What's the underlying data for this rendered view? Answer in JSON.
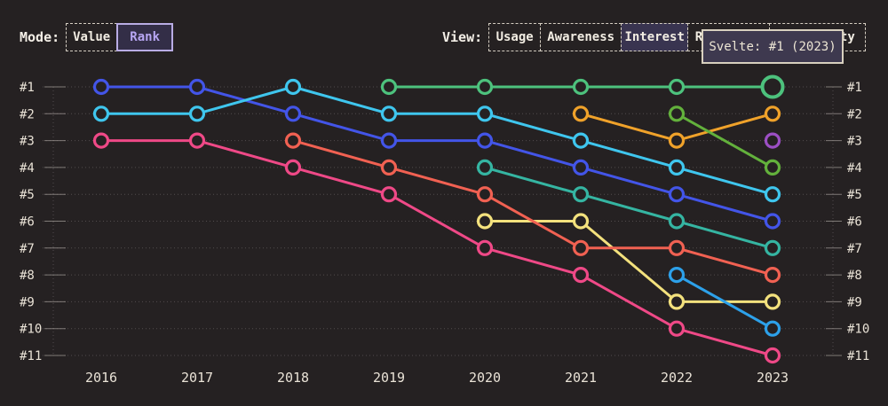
{
  "mode_control": {
    "label": "Mode:",
    "options": [
      {
        "label": "Value",
        "selected": false
      },
      {
        "label": "Rank",
        "selected": true
      }
    ]
  },
  "view_control": {
    "label": "View:",
    "options": [
      {
        "label": "Usage",
        "selected": false
      },
      {
        "label": "Awareness",
        "selected": false
      },
      {
        "label": "Interest",
        "selected": true
      },
      {
        "label": "Retention",
        "selected": false
      },
      {
        "label": "Positivity",
        "selected": false
      }
    ]
  },
  "tooltip": {
    "text": "Svelte: #1 (2023)"
  },
  "chart_data": {
    "type": "line",
    "subtype": "bump-rank-chart",
    "x_labels": [
      "2016",
      "2017",
      "2018",
      "2019",
      "2020",
      "2021",
      "2022",
      "2023"
    ],
    "rank_labels": [
      "#1",
      "#2",
      "#3",
      "#4",
      "#5",
      "#6",
      "#7",
      "#8",
      "#9",
      "#10",
      "#11"
    ],
    "ylim": [
      1,
      11
    ],
    "y_inverted": true,
    "grid": "dotted-horizontal",
    "legend": "none",
    "series": [
      {
        "name": "indigo",
        "color": "#4355e8",
        "ranks": [
          1,
          1,
          2,
          3,
          3,
          4,
          5,
          6
        ]
      },
      {
        "name": "cyan",
        "color": "#3fc6ee",
        "ranks": [
          2,
          2,
          1,
          2,
          2,
          3,
          4,
          5
        ]
      },
      {
        "name": "magenta",
        "color": "#ef4987",
        "ranks": [
          3,
          3,
          4,
          5,
          7,
          8,
          10,
          11
        ]
      },
      {
        "name": "yellow",
        "color": "#f3e17d",
        "ranks": [
          null,
          null,
          null,
          null,
          6,
          6,
          9,
          9
        ]
      },
      {
        "name": "coral",
        "color": "#f16152",
        "ranks": [
          null,
          null,
          3,
          4,
          5,
          7,
          7,
          8
        ]
      },
      {
        "name": "teal",
        "color": "#35b5a2",
        "ranks": [
          null,
          null,
          null,
          null,
          4,
          5,
          6,
          7
        ]
      },
      {
        "name": "orange",
        "color": "#f0a22a",
        "ranks": [
          null,
          null,
          null,
          null,
          null,
          2,
          3,
          2
        ]
      },
      {
        "name": "lime",
        "color": "#63b13c",
        "ranks": [
          null,
          null,
          null,
          null,
          null,
          null,
          2,
          4
        ]
      },
      {
        "name": "sky",
        "color": "#2da1ea",
        "ranks": [
          null,
          null,
          null,
          null,
          null,
          null,
          8,
          10
        ]
      },
      {
        "name": "purple",
        "color": "#9c4fc4",
        "ranks": [
          null,
          null,
          null,
          null,
          null,
          null,
          null,
          3
        ]
      },
      {
        "name": "svelte",
        "color": "#4dc27d",
        "ranks": [
          null,
          null,
          null,
          1,
          1,
          1,
          1,
          1
        ]
      }
    ],
    "highlight": {
      "series": "svelte",
      "year": "2023",
      "rank": 1,
      "tooltip": "Svelte: #1 (2023)"
    }
  },
  "ui_colors": {
    "background": "#252122",
    "axis_text": "#e9e2d6",
    "button_border": "#d5cec2",
    "selected_mode_bg": "#332e47",
    "selected_mode_border": "#b9ace4",
    "selected_mode_text": "#b7a6f2",
    "selected_view_bg": "#393450",
    "tooltip_bg": "#3e394f",
    "tooltip_border": "#d8d0bf"
  }
}
